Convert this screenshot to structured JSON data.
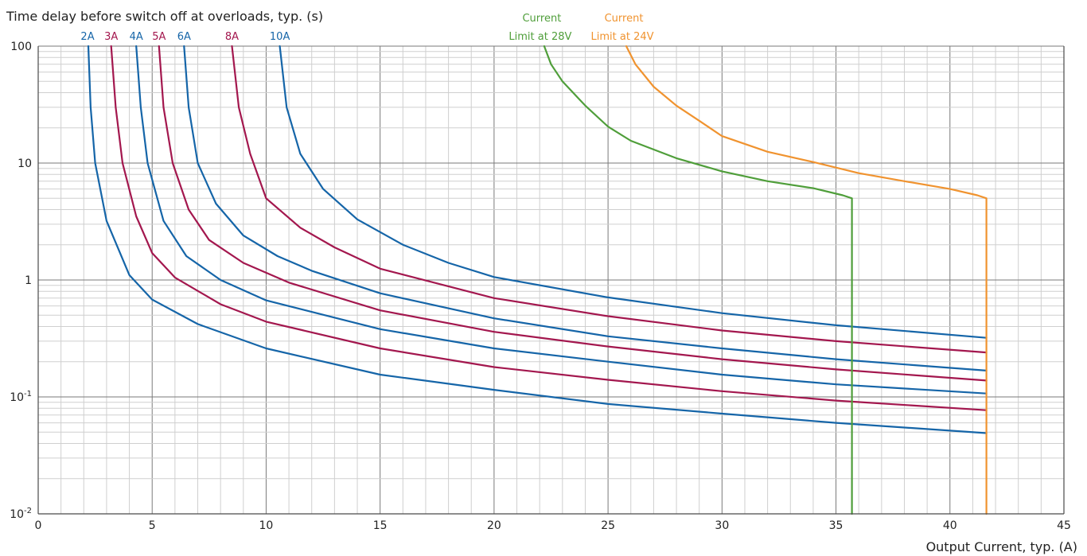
{
  "chart_data": {
    "type": "line",
    "title": "Time delay before switch off at overloads, typ. (s)",
    "xlabel": "Output Current, typ. (A)",
    "ylabel": "Time delay before switch off at overloads, typ. (s)",
    "xlim": [
      0,
      45
    ],
    "ylim": [
      0.01,
      100
    ],
    "y_scale": "log",
    "grid": true,
    "x_ticks": [
      "0",
      "5",
      "10",
      "15",
      "20",
      "25",
      "30",
      "35",
      "40",
      "45"
    ],
    "y_ticks": [
      {
        "value": 100,
        "base": "100",
        "exp": ""
      },
      {
        "value": 10,
        "base": "10",
        "exp": ""
      },
      {
        "value": 1,
        "base": "1",
        "exp": ""
      },
      {
        "value": 0.1,
        "base": "10",
        "exp": "-1"
      },
      {
        "value": 0.01,
        "base": "10",
        "exp": "-2"
      }
    ],
    "series": [
      {
        "name": "2A",
        "color": "#1565a8",
        "points": [
          [
            2.2,
            100
          ],
          [
            2.3,
            30
          ],
          [
            2.5,
            10
          ],
          [
            3.0,
            3.2
          ],
          [
            4.0,
            1.1
          ],
          [
            5.0,
            0.68
          ],
          [
            7.0,
            0.42
          ],
          [
            10.0,
            0.26
          ],
          [
            15.0,
            0.155
          ],
          [
            20.0,
            0.115
          ],
          [
            25.0,
            0.087
          ],
          [
            30.0,
            0.072
          ],
          [
            35.0,
            0.06
          ],
          [
            41.6,
            0.049
          ]
        ]
      },
      {
        "name": "3A",
        "color": "#a3174e",
        "points": [
          [
            3.2,
            100
          ],
          [
            3.4,
            30
          ],
          [
            3.7,
            10
          ],
          [
            4.3,
            3.5
          ],
          [
            5.0,
            1.7
          ],
          [
            6.0,
            1.05
          ],
          [
            8.0,
            0.62
          ],
          [
            10.0,
            0.44
          ],
          [
            15.0,
            0.26
          ],
          [
            20.0,
            0.18
          ],
          [
            25.0,
            0.14
          ],
          [
            30.0,
            0.112
          ],
          [
            35.0,
            0.093
          ],
          [
            41.6,
            0.077
          ]
        ]
      },
      {
        "name": "4A",
        "color": "#1565a8",
        "points": [
          [
            4.3,
            100
          ],
          [
            4.5,
            30
          ],
          [
            4.8,
            10
          ],
          [
            5.5,
            3.2
          ],
          [
            6.5,
            1.6
          ],
          [
            8.0,
            1.0
          ],
          [
            10.0,
            0.67
          ],
          [
            15.0,
            0.38
          ],
          [
            20.0,
            0.26
          ],
          [
            25.0,
            0.2
          ],
          [
            30.0,
            0.155
          ],
          [
            35.0,
            0.128
          ],
          [
            41.6,
            0.107
          ]
        ]
      },
      {
        "name": "5A",
        "color": "#a3174e",
        "points": [
          [
            5.3,
            100
          ],
          [
            5.5,
            30
          ],
          [
            5.9,
            10
          ],
          [
            6.6,
            4.0
          ],
          [
            7.5,
            2.2
          ],
          [
            9.0,
            1.4
          ],
          [
            11.0,
            0.95
          ],
          [
            15.0,
            0.55
          ],
          [
            20.0,
            0.36
          ],
          [
            25.0,
            0.27
          ],
          [
            30.0,
            0.21
          ],
          [
            35.0,
            0.172
          ],
          [
            41.6,
            0.138
          ]
        ]
      },
      {
        "name": "6A",
        "color": "#1565a8",
        "points": [
          [
            6.4,
            100
          ],
          [
            6.6,
            30
          ],
          [
            7.0,
            10
          ],
          [
            7.8,
            4.5
          ],
          [
            9.0,
            2.4
          ],
          [
            10.5,
            1.6
          ],
          [
            12.0,
            1.2
          ],
          [
            15.0,
            0.77
          ],
          [
            20.0,
            0.47
          ],
          [
            25.0,
            0.33
          ],
          [
            30.0,
            0.26
          ],
          [
            35.0,
            0.21
          ],
          [
            41.6,
            0.168
          ]
        ]
      },
      {
        "name": "8A",
        "color": "#a3174e",
        "points": [
          [
            8.5,
            100
          ],
          [
            8.8,
            30
          ],
          [
            9.3,
            12
          ],
          [
            10.0,
            5.0
          ],
          [
            11.5,
            2.8
          ],
          [
            13.0,
            1.9
          ],
          [
            15.0,
            1.25
          ],
          [
            20.0,
            0.7
          ],
          [
            25.0,
            0.49
          ],
          [
            30.0,
            0.37
          ],
          [
            35.0,
            0.3
          ],
          [
            41.6,
            0.24
          ]
        ]
      },
      {
        "name": "10A",
        "color": "#1565a8",
        "points": [
          [
            10.6,
            100
          ],
          [
            10.9,
            30
          ],
          [
            11.5,
            12
          ],
          [
            12.5,
            6.0
          ],
          [
            14.0,
            3.3
          ],
          [
            16.0,
            2.0
          ],
          [
            18.0,
            1.4
          ],
          [
            20.0,
            1.06
          ],
          [
            25.0,
            0.71
          ],
          [
            30.0,
            0.52
          ],
          [
            35.0,
            0.41
          ],
          [
            41.6,
            0.32
          ]
        ]
      },
      {
        "name": "Current Limit at 28V",
        "color": "#4f9e3a",
        "points": [
          [
            22.2,
            100
          ],
          [
            22.5,
            70
          ],
          [
            23.0,
            50
          ],
          [
            24.0,
            31
          ],
          [
            25.0,
            20.5
          ],
          [
            26.0,
            15.5
          ],
          [
            28.0,
            11.0
          ],
          [
            30.0,
            8.5
          ],
          [
            32.0,
            7.0
          ],
          [
            34.0,
            6.1
          ],
          [
            35.3,
            5.3
          ],
          [
            35.7,
            5.0
          ],
          [
            35.7,
            0.01
          ]
        ]
      },
      {
        "name": "Current Limit at 24V",
        "color": "#f0932f",
        "points": [
          [
            25.8,
            100
          ],
          [
            26.2,
            70
          ],
          [
            27.0,
            45
          ],
          [
            28.0,
            31
          ],
          [
            29.0,
            23
          ],
          [
            30.0,
            17
          ],
          [
            32.0,
            12.5
          ],
          [
            34.0,
            10.2
          ],
          [
            36.0,
            8.2
          ],
          [
            38.0,
            7.0
          ],
          [
            40.0,
            6.0
          ],
          [
            41.2,
            5.3
          ],
          [
            41.6,
            5.0
          ],
          [
            41.6,
            0.01
          ]
        ]
      }
    ]
  }
}
